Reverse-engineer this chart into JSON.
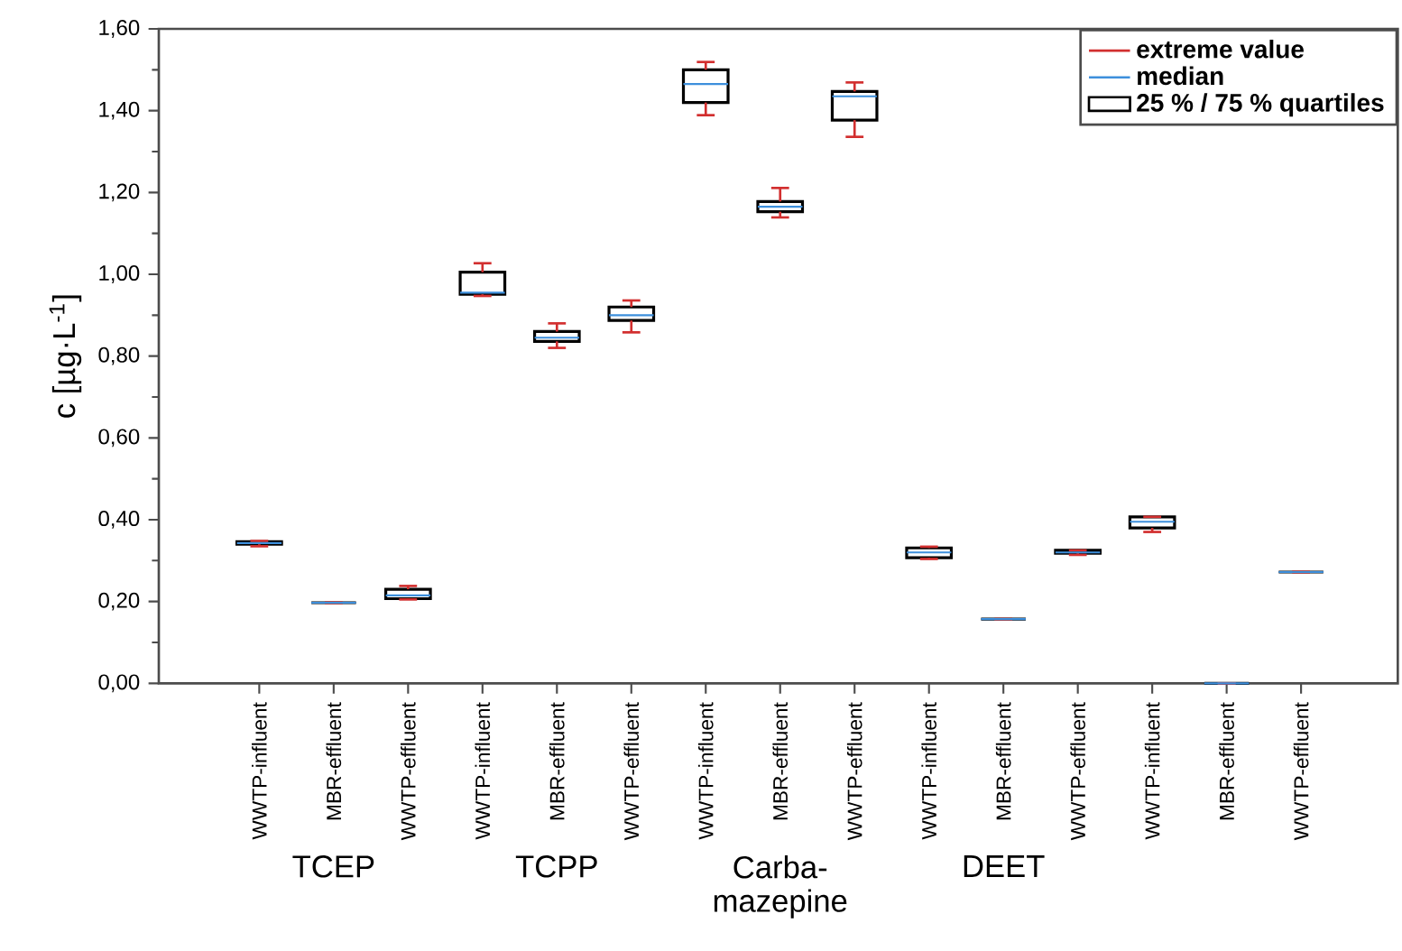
{
  "chart_data": {
    "type": "box",
    "ylabel": "c [µg·L$^{-1}$]",
    "categories": [
      "WWTP-influent",
      "MBR-effluent",
      "WWTP-effluent",
      "WWTP-influent",
      "MBR-effluent",
      "WWTP-effluent",
      "WWTP-influent",
      "MBR-effluent",
      "WWTP-effluent",
      "WWTP-influent",
      "MBR-effluent",
      "WWTP-effluent",
      "WWTP-influent",
      "MBR-effluent",
      "WWTP-effluent"
    ],
    "series": [
      {
        "name": "25 % / 75 % quartiles",
        "color": "#000000",
        "boxes": [
          {
            "low": 0.335,
            "q1": 0.34,
            "median": 0.343,
            "q3": 0.346,
            "high": 0.348
          },
          {
            "low": 0.197,
            "q1": 0.197,
            "median": 0.197,
            "q3": 0.197,
            "high": 0.197
          },
          {
            "low": 0.205,
            "q1": 0.207,
            "median": 0.215,
            "q3": 0.23,
            "high": 0.238
          },
          {
            "low": 0.947,
            "q1": 0.951,
            "median": 0.955,
            "q3": 1.005,
            "high": 1.027
          },
          {
            "low": 0.82,
            "q1": 0.836,
            "median": 0.845,
            "q3": 0.86,
            "high": 0.88
          },
          {
            "low": 0.858,
            "q1": 0.887,
            "median": 0.9,
            "q3": 0.92,
            "high": 0.936
          },
          {
            "low": 1.389,
            "q1": 1.42,
            "median": 1.465,
            "q3": 1.5,
            "high": 1.519
          },
          {
            "low": 1.139,
            "q1": 1.153,
            "median": 1.165,
            "q3": 1.178,
            "high": 1.211
          },
          {
            "low": 1.336,
            "q1": 1.377,
            "median": 1.435,
            "q3": 1.447,
            "high": 1.469
          },
          {
            "low": 0.304,
            "q1": 0.307,
            "median": 0.32,
            "q3": 0.331,
            "high": 0.334
          },
          {
            "low": 0.157,
            "q1": 0.157,
            "median": 0.157,
            "q3": 0.157,
            "high": 0.157
          },
          {
            "low": 0.314,
            "q1": 0.318,
            "median": 0.32,
            "q3": 0.325,
            "high": 0.325
          },
          {
            "low": 0.37,
            "q1": 0.38,
            "median": 0.395,
            "q3": 0.407,
            "high": 0.407
          },
          {
            "low": 0.0,
            "q1": 0.0,
            "median": 0.0,
            "q3": 0.0,
            "high": 0.0
          },
          {
            "low": 0.272,
            "q1": 0.272,
            "median": 0.272,
            "q3": 0.272,
            "high": 0.272
          }
        ]
      }
    ],
    "ylim": [
      0,
      1.6
    ],
    "yticks": [
      {
        "value": 0,
        "label": "0,00"
      },
      {
        "value": 0.2,
        "label": "0,20"
      },
      {
        "value": 0.4,
        "label": "0,40"
      },
      {
        "value": 0.6,
        "label": "0,60"
      },
      {
        "value": 0.8,
        "label": "0,80"
      },
      {
        "value": 1.0,
        "label": "1,00"
      },
      {
        "value": 1.2,
        "label": "1,20"
      },
      {
        "value": 1.4,
        "label": "1,40"
      },
      {
        "value": 1.6,
        "label": "1,60"
      }
    ],
    "legend": "top right",
    "annotations": [
      "extreme value",
      "median",
      "TCEP",
      "TCPP",
      "Carba- mazepine",
      "DEET"
    ]
  }
}
